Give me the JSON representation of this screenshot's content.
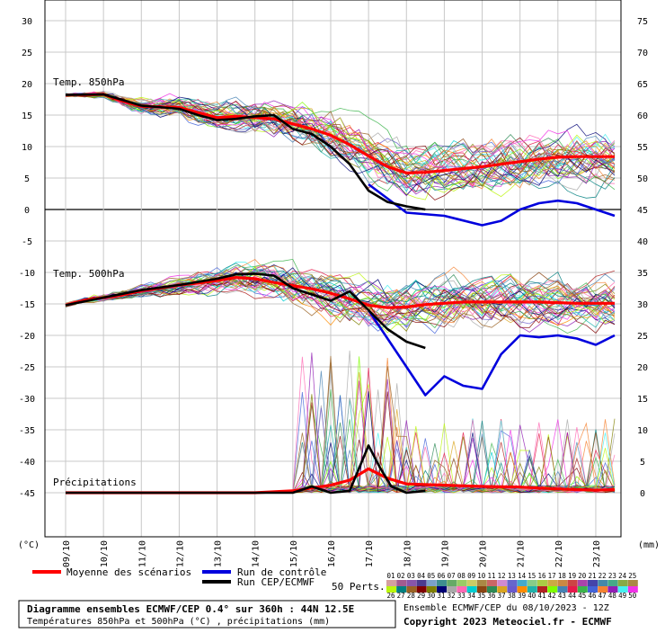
{
  "chart_data": {
    "type": "line",
    "title": "Diagramme ensembles ECMWF/CEP 0.4° sur 360h : 44N 12.5E",
    "subtitle": "Températures 850hPa et 500hPa (°C) , précipitations (mm)",
    "panel_labels": [
      "Temp. 850hPa",
      "Temp. 500hPa",
      "Précipitations"
    ],
    "y_left_ticks": [
      30,
      25,
      20,
      15,
      10,
      5,
      0,
      -5,
      -10,
      -15,
      -20,
      -25,
      -30,
      -35,
      -40,
      -45
    ],
    "y_right_ticks": [
      75,
      70,
      65,
      60,
      55,
      50,
      45,
      40,
      35,
      30,
      25,
      20,
      15,
      10,
      5,
      0
    ],
    "y_left_unit": "(°C)",
    "y_right_unit": "(mm)",
    "x_ticks": [
      "09/10",
      "10/10",
      "11/10",
      "12/10",
      "13/10",
      "14/10",
      "15/10",
      "16/10",
      "17/10",
      "18/10",
      "19/10",
      "20/10",
      "21/10",
      "22/10",
      "23/10"
    ],
    "legend": {
      "mean": "Moyenne des scénarios",
      "control": "Run de contrôle",
      "cep": "Run CEP/ECMWF",
      "perts_label": "50 Perts.",
      "pert_codes_top": [
        "01",
        "02",
        "03",
        "04",
        "05",
        "06",
        "07",
        "08",
        "09",
        "10",
        "11",
        "12",
        "13",
        "14",
        "15",
        "16",
        "17",
        "18",
        "19",
        "20",
        "21",
        "22",
        "23",
        "24",
        "25"
      ],
      "pert_codes_bottom": [
        "26",
        "27",
        "28",
        "29",
        "30",
        "31",
        "32",
        "33",
        "34",
        "35",
        "36",
        "37",
        "38",
        "39",
        "40",
        "41",
        "42",
        "43",
        "44",
        "45",
        "46",
        "47",
        "48",
        "49",
        "50"
      ]
    },
    "footer": {
      "ensemble": "Ensemble ECMWF/CEP du 08/10/2023 - 12Z",
      "copyright": "Copyright 2023 Meteociel.fr - ECMWF"
    },
    "colors": {
      "mean": "#ff0000",
      "control": "#0000dd",
      "cep": "#000000"
    },
    "series": [
      {
        "name": "Moyenne des scénarios",
        "t850": [
          [
            0,
            18.2
          ],
          [
            0.5,
            18.2
          ],
          [
            1,
            18.3
          ],
          [
            1.5,
            17.2
          ],
          [
            2,
            16.4
          ],
          [
            2.5,
            16.3
          ],
          [
            3,
            16.2
          ],
          [
            3.5,
            15.4
          ],
          [
            4,
            14.6
          ],
          [
            4.5,
            14.8
          ],
          [
            5,
            14.6
          ],
          [
            5.5,
            14.4
          ],
          [
            6,
            13.6
          ],
          [
            6.5,
            12.8
          ],
          [
            7,
            11.8
          ],
          [
            7.5,
            10.3
          ],
          [
            8,
            8.5
          ],
          [
            8.5,
            6.8
          ],
          [
            9,
            5.8
          ],
          [
            9.5,
            5.9
          ],
          [
            10,
            6.2
          ],
          [
            10.5,
            6.5
          ],
          [
            11,
            6.8
          ],
          [
            11.5,
            7.2
          ],
          [
            12,
            7.6
          ],
          [
            12.5,
            8.0
          ],
          [
            13,
            8.3
          ],
          [
            13.5,
            8.4
          ],
          [
            14,
            8.4
          ],
          [
            14.5,
            8.4
          ]
        ],
        "t500": [
          [
            0,
            -15.2
          ],
          [
            0.5,
            -14.4
          ],
          [
            1,
            -14.0
          ],
          [
            1.5,
            -13.6
          ],
          [
            2,
            -12.9
          ],
          [
            2.5,
            -12.5
          ],
          [
            3,
            -12.0
          ],
          [
            3.5,
            -11.7
          ],
          [
            4,
            -11.3
          ],
          [
            4.5,
            -10.8
          ],
          [
            5,
            -11.0
          ],
          [
            5.5,
            -11.6
          ],
          [
            6,
            -12.1
          ],
          [
            6.5,
            -12.6
          ],
          [
            7,
            -13.3
          ],
          [
            7.5,
            -14.2
          ],
          [
            8,
            -15.2
          ],
          [
            8.5,
            -15.6
          ],
          [
            9,
            -15.5
          ],
          [
            9.5,
            -15.1
          ],
          [
            10,
            -14.9
          ],
          [
            10.5,
            -14.7
          ],
          [
            11,
            -14.7
          ],
          [
            11.5,
            -14.7
          ],
          [
            12,
            -14.7
          ],
          [
            12.5,
            -14.7
          ],
          [
            13,
            -14.8
          ],
          [
            13.5,
            -14.9
          ],
          [
            14,
            -14.9
          ],
          [
            14.5,
            -14.9
          ]
        ],
        "precip": [
          [
            0,
            0
          ],
          [
            5,
            0
          ],
          [
            6,
            0.3
          ],
          [
            7,
            1.2
          ],
          [
            7.5,
            2.0
          ],
          [
            8,
            3.8
          ],
          [
            8.5,
            2.3
          ],
          [
            9,
            1.4
          ],
          [
            10,
            1.2
          ],
          [
            11,
            1.0
          ],
          [
            12,
            0.9
          ],
          [
            13,
            0.6
          ],
          [
            14,
            0.4
          ],
          [
            14.5,
            0.5
          ]
        ]
      },
      {
        "name": "Run de contrôle",
        "t850": [
          [
            8,
            4
          ],
          [
            9,
            -0.5
          ],
          [
            10,
            -1
          ],
          [
            11,
            -2.5
          ],
          [
            11.5,
            -1.8
          ],
          [
            12,
            0
          ],
          [
            12.5,
            1
          ],
          [
            13,
            1.4
          ],
          [
            13.5,
            1
          ],
          [
            14,
            0
          ],
          [
            14.5,
            -1
          ]
        ],
        "t500": [
          [
            8,
            -16
          ],
          [
            9,
            -25
          ],
          [
            9.5,
            -29.5
          ],
          [
            10,
            -26.5
          ],
          [
            10.5,
            -28
          ],
          [
            11,
            -28.5
          ],
          [
            11.5,
            -23
          ],
          [
            12,
            -20
          ],
          [
            12.5,
            -20.3
          ],
          [
            13,
            -20
          ],
          [
            13.5,
            -20.5
          ],
          [
            14,
            -21.5
          ],
          [
            14.5,
            -20
          ]
        ]
      },
      {
        "name": "Run CEP/ECMWF",
        "t850": [
          [
            0,
            18.2
          ],
          [
            1,
            18.3
          ],
          [
            2,
            16.5
          ],
          [
            3,
            16
          ],
          [
            3.5,
            15
          ],
          [
            4,
            14.2
          ],
          [
            4.5,
            14.4
          ],
          [
            5,
            14.8
          ],
          [
            5.5,
            15
          ],
          [
            6,
            12.8
          ],
          [
            6.5,
            12
          ],
          [
            7,
            10
          ],
          [
            7.5,
            7.2
          ],
          [
            8,
            3
          ],
          [
            8.5,
            1.2
          ],
          [
            9,
            0.5
          ],
          [
            9.5,
            0
          ]
        ],
        "t500": [
          [
            0,
            -15.2
          ],
          [
            1,
            -14.0
          ],
          [
            2,
            -12.8
          ],
          [
            3,
            -12
          ],
          [
            3.5,
            -11.5
          ],
          [
            4,
            -11
          ],
          [
            4.5,
            -10.3
          ],
          [
            5,
            -10.2
          ],
          [
            5.5,
            -10.5
          ],
          [
            6,
            -12.5
          ],
          [
            6.5,
            -13.5
          ],
          [
            7,
            -14.5
          ],
          [
            7.5,
            -13
          ],
          [
            8,
            -16
          ],
          [
            8.5,
            -19
          ],
          [
            9,
            -21
          ],
          [
            9.5,
            -22
          ]
        ],
        "precip": [
          [
            0,
            0
          ],
          [
            5,
            0
          ],
          [
            6,
            0
          ],
          [
            6.5,
            1
          ],
          [
            7,
            0
          ],
          [
            7.5,
            0.3
          ],
          [
            8,
            7.5
          ],
          [
            8.3,
            4
          ],
          [
            8.6,
            1
          ],
          [
            9,
            0
          ],
          [
            9.5,
            0.3
          ]
        ]
      }
    ]
  }
}
